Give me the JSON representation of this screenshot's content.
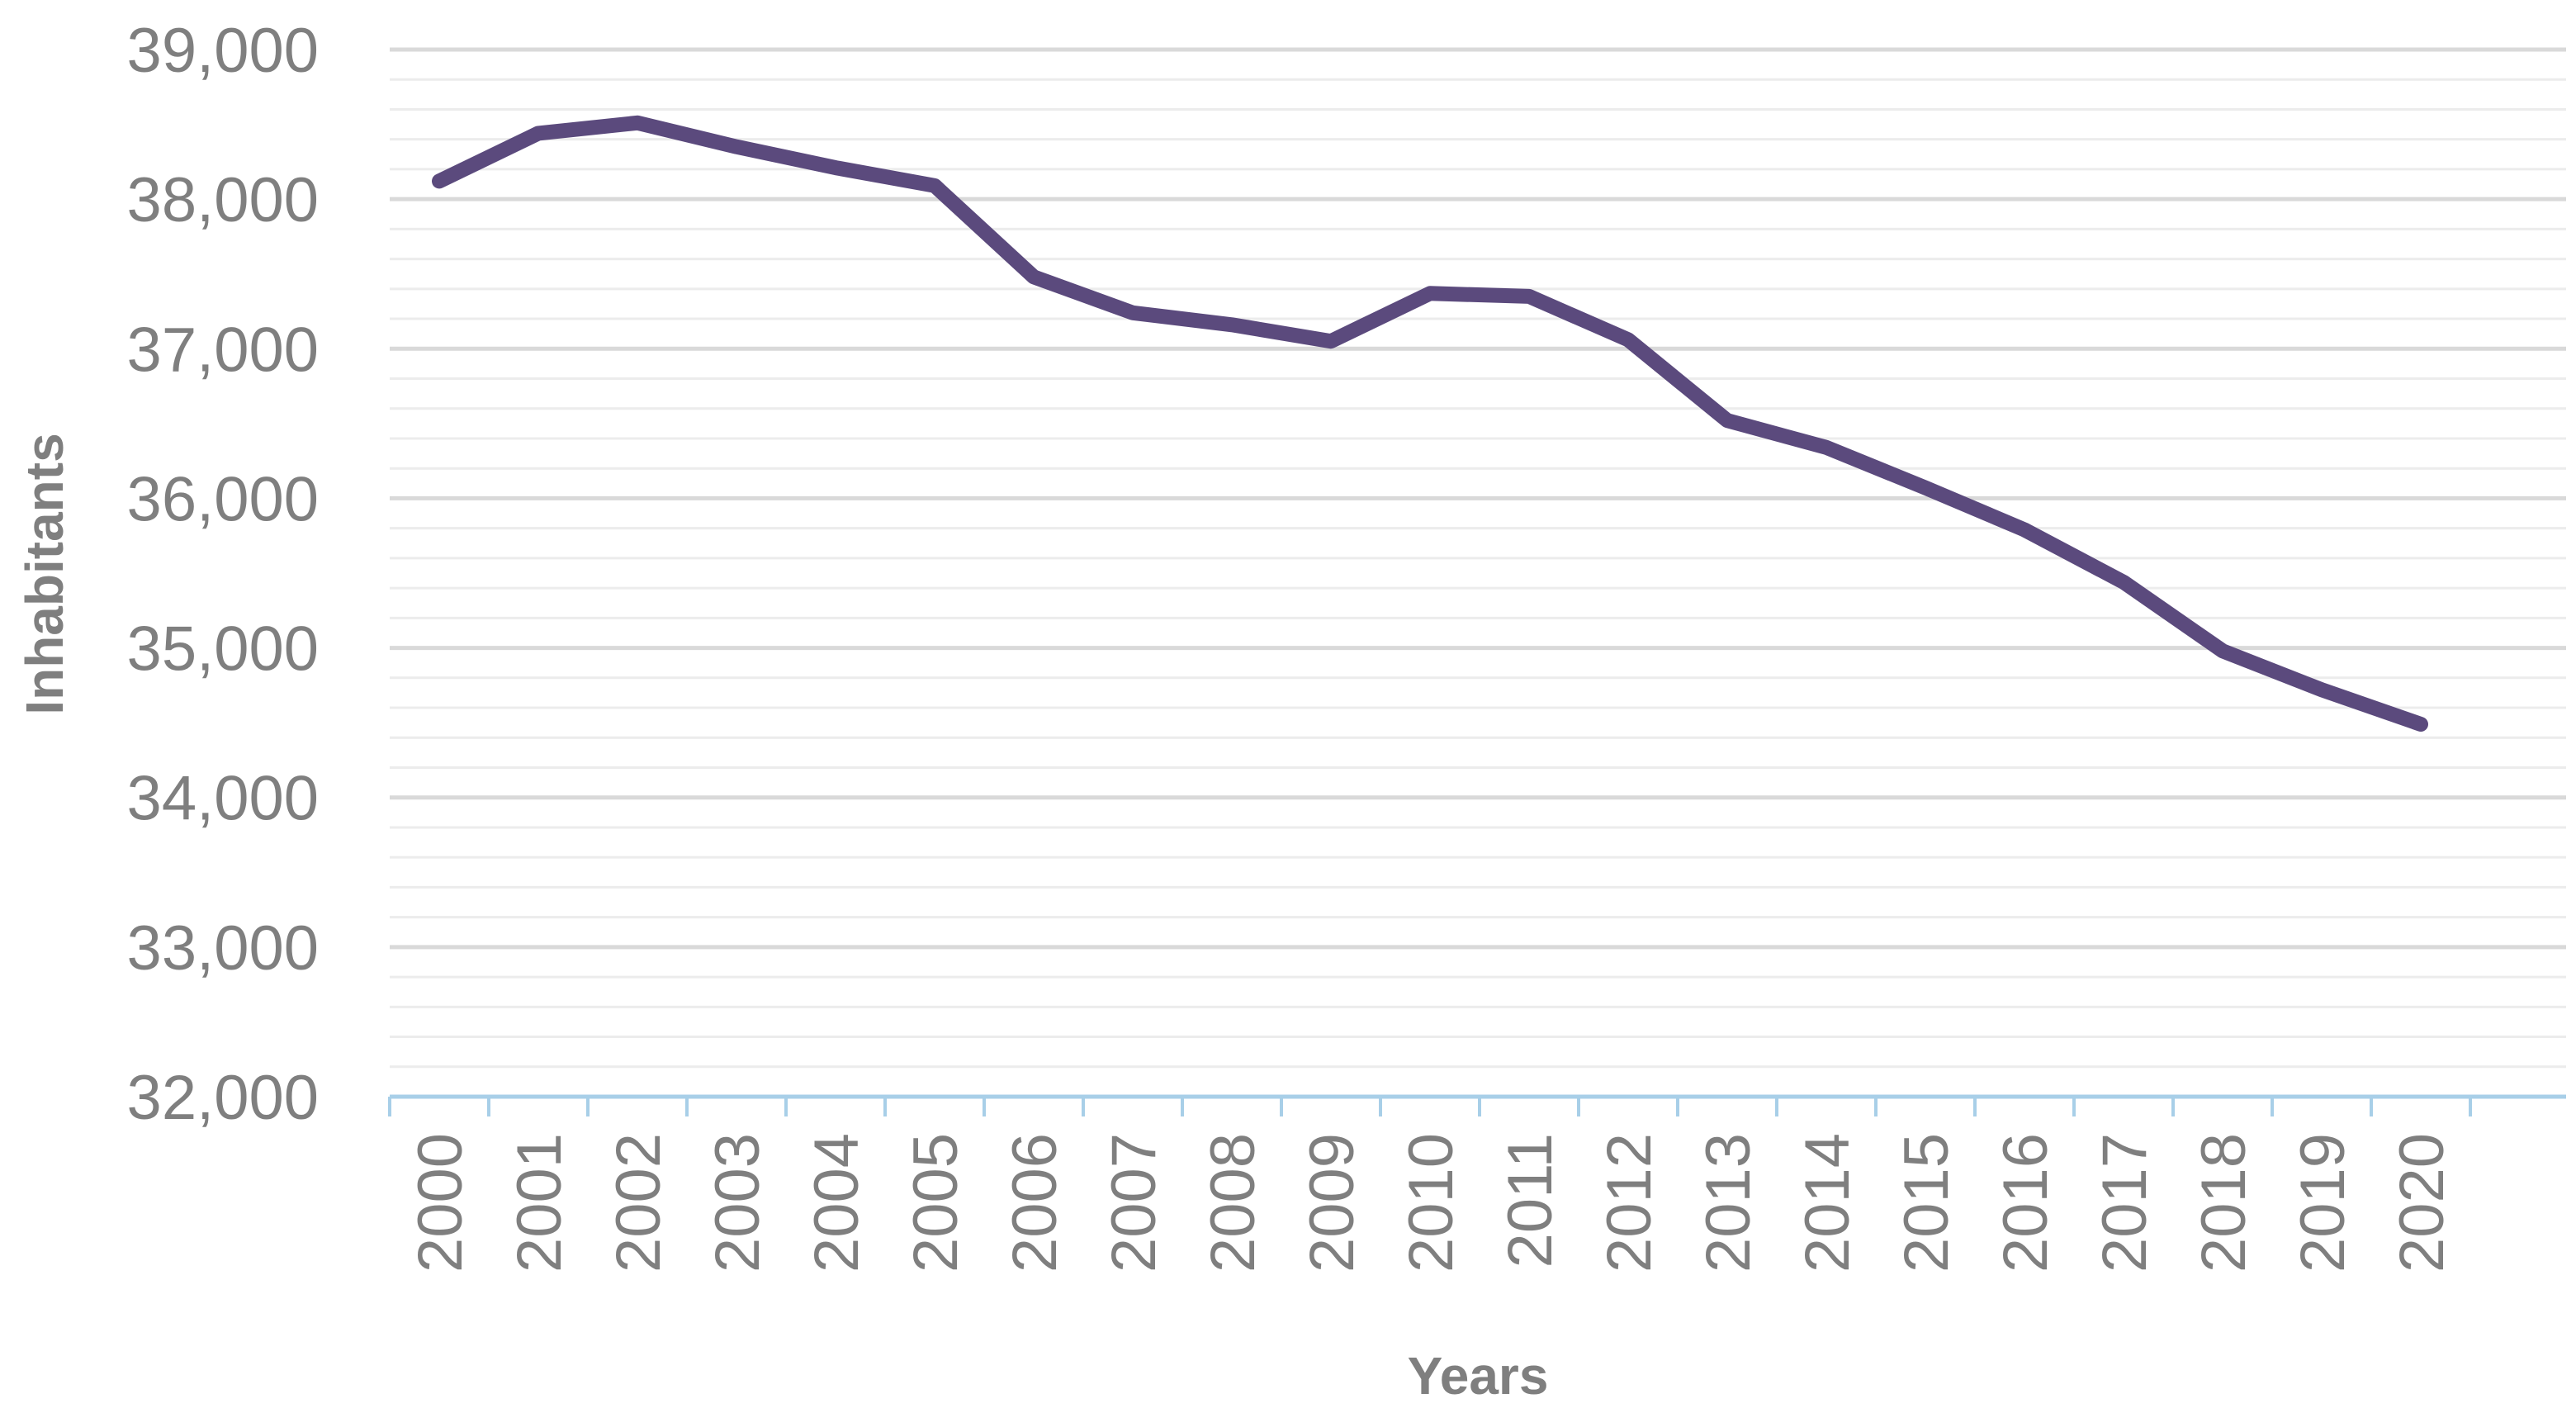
{
  "chart_data": {
    "type": "line",
    "title": "",
    "xlabel": "Years",
    "ylabel": "Inhabitants",
    "categories": [
      "2000",
      "2001",
      "2002",
      "2003",
      "2004",
      "2005",
      "2006",
      "2007",
      "2008",
      "2009",
      "2010",
      "2011",
      "2012",
      "2013",
      "2014",
      "2015",
      "2016",
      "2017",
      "2018",
      "2019",
      "2020"
    ],
    "y_tick_labels": [
      "32,000",
      "33,000",
      "34,000",
      "35,000",
      "36,000",
      "37,000",
      "38,000",
      "39,000"
    ],
    "y_ticks": [
      32000,
      33000,
      34000,
      35000,
      36000,
      37000,
      38000,
      39000
    ],
    "ylim": [
      32000,
      39000
    ],
    "series": [
      {
        "values": [
          38120,
          38440,
          38510,
          38350,
          38210,
          38090,
          37480,
          37240,
          37160,
          37050,
          37370,
          37350,
          37060,
          36520,
          36340,
          36070,
          35790,
          35440,
          34980,
          34720,
          34490
        ]
      }
    ],
    "grid": true,
    "minor_grid": true,
    "legend": "none",
    "colors": {
      "line": "#5b4a7d",
      "major_grid": "#d9d9d9",
      "minor_grid": "#ececec",
      "axis": "#a8cfe8",
      "text": "#7f7f7f"
    }
  }
}
